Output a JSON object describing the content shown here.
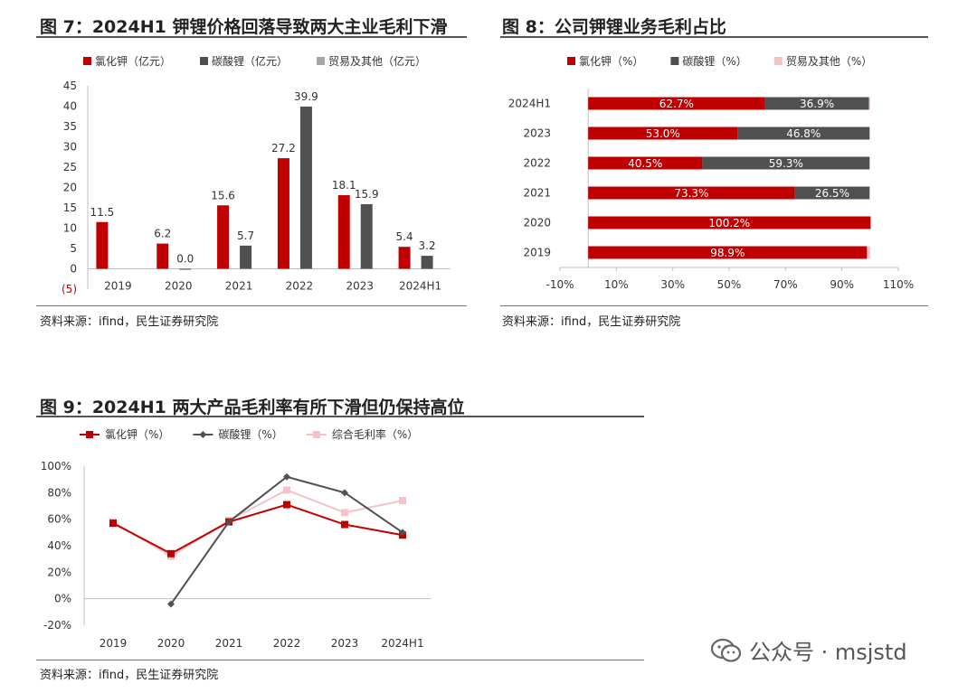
{
  "fig7": {
    "title": "图 7：2024H1 钾锂价格回落导致两大主业毛利下滑",
    "source": "资料来源：ifind，民生证券研究院"
  },
  "fig8": {
    "title": "图 8：公司钾锂业务毛利占比",
    "source": "资料来源：ifind，民生证券研究院"
  },
  "fig9": {
    "title": "图 9：2024H1 两大产品毛利率有所下滑但仍保持高位",
    "source": "资料来源：ifind，民生证券研究院"
  },
  "watermark": {
    "text": "公众号 · msjstd"
  },
  "colors": {
    "red": "#c00000",
    "gray": "#505050",
    "pink": "#f2c4c8",
    "axis": "#bfbfbf"
  },
  "chart_data": [
    {
      "id": "fig7",
      "type": "bar",
      "categories": [
        "2019",
        "2020",
        "2021",
        "2022",
        "2023",
        "2024H1"
      ],
      "series": [
        {
          "name": "氯化钾（亿元）",
          "values": [
            11.5,
            6.2,
            15.6,
            27.2,
            18.1,
            5.4
          ],
          "labels": [
            "11.5",
            "6.2",
            "15.6",
            "27.2",
            "18.1",
            "5.4"
          ],
          "color": "#c00000"
        },
        {
          "name": "碳酸锂（亿元）",
          "values": [
            null,
            0.0,
            5.7,
            39.9,
            15.9,
            3.2
          ],
          "labels": [
            "",
            "0.0",
            "5.7",
            "39.9",
            "15.9",
            "3.2"
          ],
          "color": "#505050"
        },
        {
          "name": "贸易及其他（亿元）",
          "values": [
            null,
            null,
            null,
            null,
            null,
            null
          ],
          "labels": [
            "",
            "",
            "",
            "",
            "",
            ""
          ],
          "color": "#a6a6a6"
        }
      ],
      "ylim": [
        -5,
        45
      ],
      "yticks": [
        "(5)",
        "0",
        "5",
        "10",
        "15",
        "20",
        "25",
        "30",
        "35",
        "40",
        "45"
      ],
      "ytick_values": [
        -5,
        0,
        5,
        10,
        15,
        20,
        25,
        30,
        35,
        40,
        45
      ],
      "legend": "top"
    },
    {
      "id": "fig8",
      "type": "bar",
      "orientation": "horizontal-stacked",
      "categories": [
        "2024H1",
        "2023",
        "2022",
        "2021",
        "2020",
        "2019"
      ],
      "series": [
        {
          "name": "氯化钾（%）",
          "values": [
            62.7,
            53.0,
            40.5,
            73.3,
            100.2,
            98.9
          ],
          "labels": [
            "62.7%",
            "53.0%",
            "40.5%",
            "73.3%",
            "100.2%",
            "98.9%"
          ],
          "color": "#c00000"
        },
        {
          "name": "碳酸锂（%）",
          "values": [
            36.9,
            46.8,
            59.3,
            26.5,
            -0.2,
            0.0
          ],
          "labels": [
            "36.9%",
            "46.8%",
            "59.3%",
            "26.5%",
            "",
            ""
          ],
          "color": "#505050"
        },
        {
          "name": "贸易及其他（%）",
          "values": [
            0.4,
            0.2,
            0.2,
            0.2,
            0.0,
            1.1
          ],
          "labels": [
            "",
            "",
            "",
            "",
            "",
            ""
          ],
          "color": "#f2c4c8"
        }
      ],
      "xlim": [
        -10,
        110
      ],
      "xticks": [
        "-10%",
        "10%",
        "30%",
        "50%",
        "70%",
        "90%",
        "110%"
      ],
      "xtick_values": [
        -10,
        10,
        30,
        50,
        70,
        90,
        110
      ],
      "legend": "top"
    },
    {
      "id": "fig9",
      "type": "line",
      "categories": [
        "2019",
        "2020",
        "2021",
        "2022",
        "2023",
        "2024H1"
      ],
      "series": [
        {
          "name": "氯化钾（%）",
          "values": [
            57,
            34,
            58,
            71,
            56,
            48
          ],
          "color": "#c00000",
          "marker": "square"
        },
        {
          "name": "碳酸锂（%）",
          "values": [
            null,
            -4,
            58,
            92,
            80,
            50
          ],
          "color": "#505050",
          "marker": "diamond"
        },
        {
          "name": "综合毛利率（%）",
          "values": [
            58,
            32,
            59,
            82,
            65,
            74
          ],
          "color": "#f2c4c8",
          "marker": "square"
        }
      ],
      "ylim": [
        -20,
        100
      ],
      "yticks": [
        "-20%",
        "0%",
        "20%",
        "40%",
        "60%",
        "80%",
        "100%"
      ],
      "ytick_values": [
        -20,
        0,
        20,
        40,
        60,
        80,
        100
      ],
      "legend": "top"
    }
  ]
}
